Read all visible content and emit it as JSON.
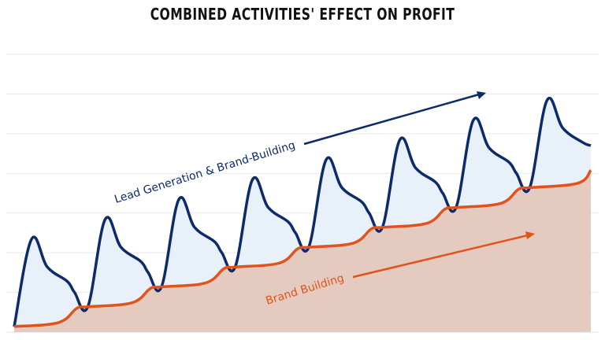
{
  "chart_data": {
    "type": "area",
    "title": "COMBINED ACTIVITIES' EFFECT ON PROFIT",
    "xlabel": "",
    "ylabel": "",
    "xlim": [
      0,
      7.83
    ],
    "ylim": [
      0,
      7
    ],
    "grid": true,
    "series": [
      {
        "name": "Lead Generation & Brand-Building",
        "color": "#0d2a6b",
        "fill": "#e8f0f9",
        "points": [
          [
            0,
            0.14
          ],
          [
            0.235,
            2.34
          ],
          [
            0.45,
            1.64
          ],
          [
            0.72,
            1.28
          ],
          [
            0.82,
            1.0
          ],
          [
            1,
            0.64
          ],
          [
            1.235,
            2.84
          ],
          [
            1.45,
            2.14
          ],
          [
            1.72,
            1.78
          ],
          [
            1.82,
            1.5
          ],
          [
            2,
            1.14
          ],
          [
            2.235,
            3.34
          ],
          [
            2.45,
            2.64
          ],
          [
            2.72,
            2.28
          ],
          [
            2.82,
            2.0
          ],
          [
            3,
            1.64
          ],
          [
            3.235,
            3.84
          ],
          [
            3.45,
            3.14
          ],
          [
            3.72,
            2.78
          ],
          [
            3.82,
            2.5
          ],
          [
            4,
            2.14
          ],
          [
            4.235,
            4.34
          ],
          [
            4.45,
            3.64
          ],
          [
            4.72,
            3.28
          ],
          [
            4.82,
            3.0
          ],
          [
            5,
            2.64
          ],
          [
            5.235,
            4.84
          ],
          [
            5.45,
            4.14
          ],
          [
            5.72,
            3.78
          ],
          [
            5.82,
            3.5
          ],
          [
            6,
            3.14
          ],
          [
            6.235,
            5.34
          ],
          [
            6.45,
            4.64
          ],
          [
            6.72,
            4.28
          ],
          [
            6.82,
            4.0
          ],
          [
            7,
            3.64
          ],
          [
            7.235,
            5.84
          ],
          [
            7.45,
            5.14
          ],
          [
            7.72,
            4.78
          ],
          [
            7.83,
            4.7
          ]
        ]
      },
      {
        "name": "Brand Building",
        "color": "#e0531c",
        "fill": "#e4cabf",
        "points": [
          [
            0,
            0.14
          ],
          [
            0.6,
            0.24
          ],
          [
            0.85,
            0.6
          ],
          [
            1,
            0.64
          ],
          [
            1.6,
            0.74
          ],
          [
            1.85,
            1.1
          ],
          [
            2,
            1.14
          ],
          [
            2.6,
            1.24
          ],
          [
            2.85,
            1.6
          ],
          [
            3,
            1.64
          ],
          [
            3.6,
            1.74
          ],
          [
            3.85,
            2.1
          ],
          [
            4,
            2.14
          ],
          [
            4.6,
            2.24
          ],
          [
            4.85,
            2.6
          ],
          [
            5,
            2.64
          ],
          [
            5.6,
            2.74
          ],
          [
            5.85,
            3.1
          ],
          [
            6,
            3.14
          ],
          [
            6.6,
            3.24
          ],
          [
            6.85,
            3.6
          ],
          [
            7,
            3.64
          ],
          [
            7.65,
            3.75
          ],
          [
            7.83,
            4.08
          ]
        ]
      }
    ],
    "annotations": [
      {
        "text": "Lead Generation & Brand-Building",
        "color": "#0d2a6b"
      },
      {
        "text": "Brand Building",
        "color": "#e0531c"
      }
    ]
  }
}
